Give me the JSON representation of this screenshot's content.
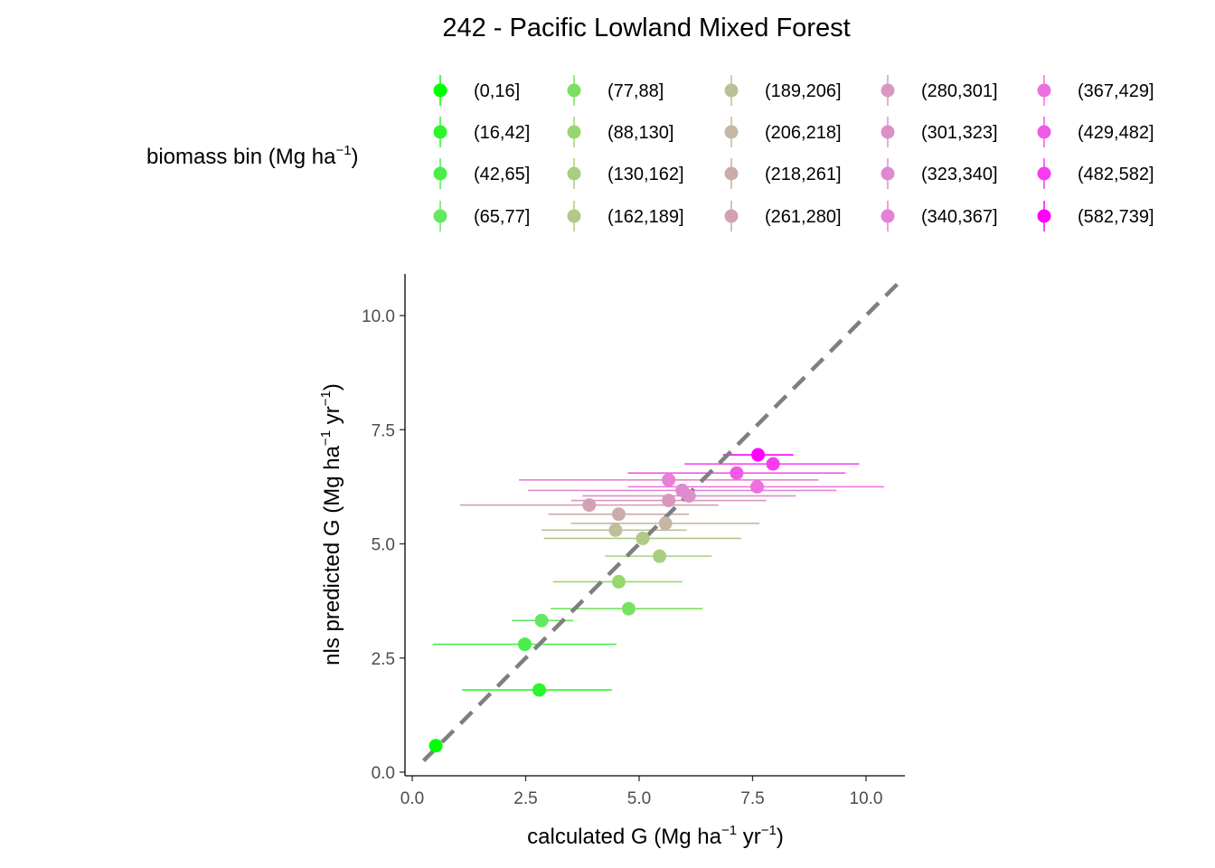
{
  "chart_data": {
    "type": "scatter",
    "title": "242 - Pacific Lowland Mixed Forest",
    "xlabel": {
      "base": "calculated G (Mg ha",
      "sup1": "−1",
      "mid": " yr",
      "sup2": "−1",
      "end": ")"
    },
    "ylabel": {
      "base": "nls predicted G (Mg ha",
      "sup1": "−1",
      "mid": " yr",
      "sup2": "−1",
      "end": ")"
    },
    "xlim": [
      -0.2,
      10.9
    ],
    "ylim": [
      -0.1,
      10.9
    ],
    "xticks": [
      0.0,
      2.5,
      5.0,
      7.5,
      10.0
    ],
    "xtick_labels": [
      "0.0",
      "2.5",
      "5.0",
      "7.5",
      "10.0"
    ],
    "yticks": [
      0.0,
      2.5,
      5.0,
      7.5,
      10.0
    ],
    "ytick_labels": [
      "0.0",
      "2.5",
      "5.0",
      "7.5",
      "10.0"
    ],
    "grid": false,
    "reference_line": {
      "type": "1:1",
      "style": "dashed",
      "color": "#7f7f7f",
      "range": [
        0.25,
        10.75
      ]
    },
    "legend": {
      "title": {
        "base": "biomass bin (Mg ha",
        "sup": "−1",
        "end": ")"
      },
      "placement": "top",
      "columns": 5
    },
    "series": [
      {
        "name": "(0,16]",
        "color": "#00ff00",
        "x": 0.52,
        "y": 0.58,
        "xmin": 0.52,
        "xmax": 0.52
      },
      {
        "name": "(16,42]",
        "color": "#2cf52c",
        "x": 2.8,
        "y": 1.8,
        "xmin": 1.1,
        "xmax": 4.4
      },
      {
        "name": "(42,65]",
        "color": "#4aee4a",
        "x": 2.48,
        "y": 2.8,
        "xmin": 0.45,
        "xmax": 4.5
      },
      {
        "name": "(65,77]",
        "color": "#62e862",
        "x": 2.85,
        "y": 3.32,
        "xmin": 2.2,
        "xmax": 3.55
      },
      {
        "name": "(77,88]",
        "color": "#78e260",
        "x": 4.77,
        "y": 3.58,
        "xmin": 3.05,
        "xmax": 6.4
      },
      {
        "name": "(88,130]",
        "color": "#98d670",
        "x": 4.55,
        "y": 4.17,
        "xmin": 3.1,
        "xmax": 5.95
      },
      {
        "name": "(130,162]",
        "color": "#a8cf80",
        "x": 5.45,
        "y": 4.73,
        "xmin": 4.25,
        "xmax": 6.6
      },
      {
        "name": "(162,189]",
        "color": "#b0c988",
        "x": 5.08,
        "y": 5.12,
        "xmin": 2.9,
        "xmax": 7.25
      },
      {
        "name": "(189,206]",
        "color": "#bcc09a",
        "x": 4.48,
        "y": 5.3,
        "xmin": 2.85,
        "xmax": 6.05
      },
      {
        "name": "(206,218]",
        "color": "#c6b6a4",
        "x": 5.58,
        "y": 5.45,
        "xmin": 3.5,
        "xmax": 7.65
      },
      {
        "name": "(218,261]",
        "color": "#ccaca8",
        "x": 4.55,
        "y": 5.65,
        "xmin": 3.0,
        "xmax": 6.1
      },
      {
        "name": "(261,280]",
        "color": "#d2a2b2",
        "x": 3.9,
        "y": 5.85,
        "xmin": 1.05,
        "xmax": 6.75
      },
      {
        "name": "(280,301]",
        "color": "#d898c0",
        "x": 5.65,
        "y": 5.95,
        "xmin": 3.5,
        "xmax": 7.8
      },
      {
        "name": "(301,323]",
        "color": "#dc90c8",
        "x": 6.1,
        "y": 6.05,
        "xmin": 3.75,
        "xmax": 8.45
      },
      {
        "name": "(323,340]",
        "color": "#e088d0",
        "x": 5.95,
        "y": 6.17,
        "xmin": 2.55,
        "xmax": 9.35
      },
      {
        "name": "(340,367]",
        "color": "#e680d8",
        "x": 5.65,
        "y": 6.4,
        "xmin": 2.35,
        "xmax": 8.95
      },
      {
        "name": "(367,429]",
        "color": "#ec70e0",
        "x": 7.6,
        "y": 6.25,
        "xmin": 4.75,
        "xmax": 10.4
      },
      {
        "name": "(429,482]",
        "color": "#f05ae8",
        "x": 7.15,
        "y": 6.55,
        "xmin": 4.75,
        "xmax": 9.55
      },
      {
        "name": "(482,582]",
        "color": "#f63cee",
        "x": 7.95,
        "y": 6.75,
        "xmin": 6.0,
        "xmax": 9.85
      },
      {
        "name": "(582,739]",
        "color": "#ff00ff",
        "x": 7.62,
        "y": 6.95,
        "xmin": 6.85,
        "xmax": 8.4
      }
    ]
  }
}
